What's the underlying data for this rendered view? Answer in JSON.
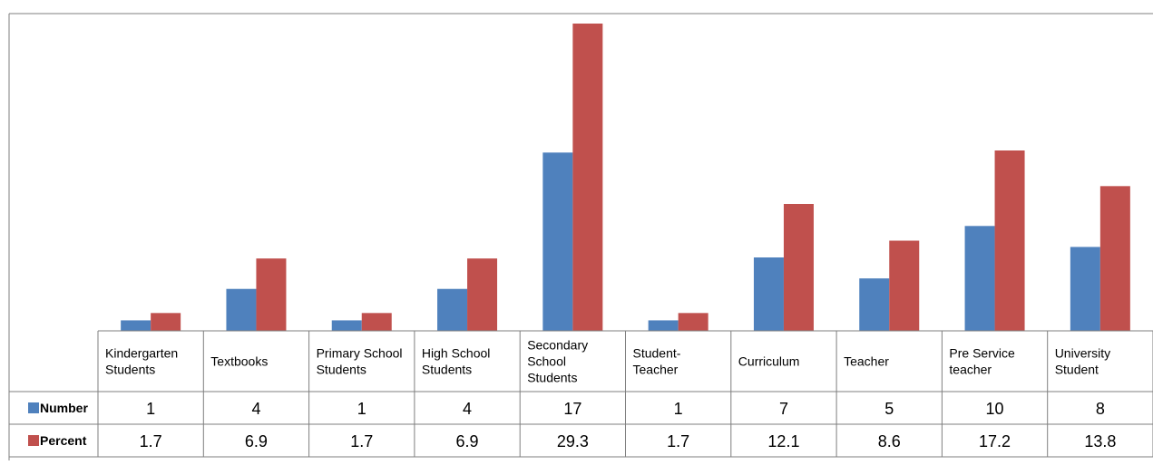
{
  "chart_data": {
    "type": "bar",
    "categories": [
      [
        "Kindergarten",
        "Students"
      ],
      [
        "Textbooks"
      ],
      [
        "Primary School",
        "Students"
      ],
      [
        "High School",
        "Students"
      ],
      [
        "Secondary",
        "School",
        "Students"
      ],
      [
        "Student-",
        "Teacher"
      ],
      [
        "Curriculum"
      ],
      [
        "Teacher"
      ],
      [
        "Pre Service",
        "teacher"
      ],
      [
        "University",
        "Student"
      ]
    ],
    "series": [
      {
        "name": "Number",
        "color": "#4F81BD",
        "values": [
          1,
          4,
          1,
          4,
          17,
          1,
          7,
          5,
          10,
          8
        ]
      },
      {
        "name": "Percent",
        "color": "#C0504D",
        "values": [
          1.7,
          6.9,
          1.7,
          6.9,
          29.3,
          1.7,
          12.1,
          8.6,
          17.2,
          13.8
        ]
      }
    ],
    "ylim": [
      0,
      30
    ],
    "grid": false,
    "legend": "data-table"
  }
}
